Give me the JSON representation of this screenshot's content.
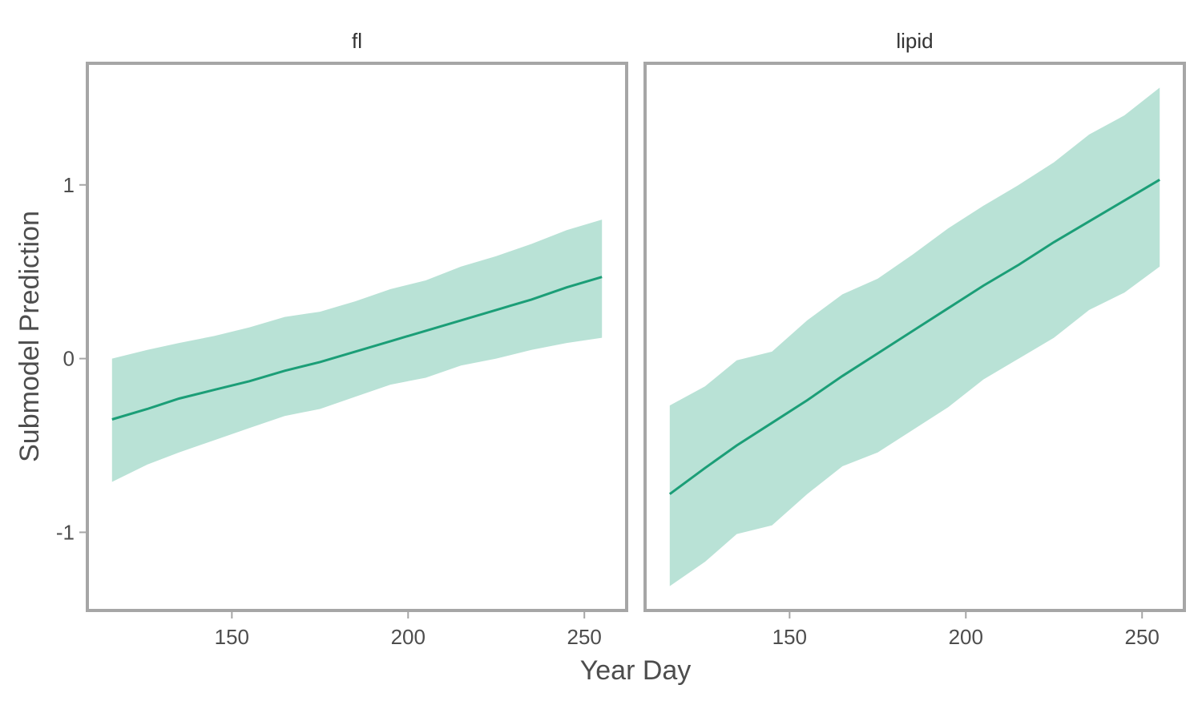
{
  "chart_data": {
    "type": "line",
    "xlabel": "Year Day",
    "ylabel": "Submodel Prediction",
    "x_ticks": [
      150,
      200,
      250
    ],
    "y_ticks": [
      1,
      0,
      -1
    ],
    "xlim": [
      109,
      262
    ],
    "ylim": [
      -1.45,
      1.7
    ],
    "grid": false,
    "colors": {
      "line": "#1b9e77",
      "band": "#b9e2d6",
      "frame": "#a6a6a6"
    },
    "panels": [
      {
        "title": "fl",
        "series": [
          {
            "x": [
              116,
              126,
              135,
              145,
              155,
              165,
              175,
              185,
              195,
              205,
              215,
              225,
              235,
              245,
              255
            ],
            "y": [
              -0.35,
              -0.29,
              -0.23,
              -0.18,
              -0.13,
              -0.07,
              -0.02,
              0.04,
              0.1,
              0.16,
              0.22,
              0.28,
              0.34,
              0.41,
              0.47
            ],
            "lower": [
              -0.71,
              -0.61,
              -0.54,
              -0.47,
              -0.4,
              -0.33,
              -0.29,
              -0.22,
              -0.15,
              -0.11,
              -0.04,
              0.0,
              0.05,
              0.09,
              0.12
            ],
            "upper": [
              0.0,
              0.05,
              0.09,
              0.13,
              0.18,
              0.24,
              0.27,
              0.33,
              0.4,
              0.45,
              0.53,
              0.59,
              0.66,
              0.74,
              0.8
            ]
          }
        ]
      },
      {
        "title": "lipid",
        "series": [
          {
            "x": [
              116,
              126,
              135,
              145,
              155,
              165,
              175,
              185,
              195,
              205,
              215,
              225,
              235,
              245,
              255
            ],
            "y": [
              -0.78,
              -0.63,
              -0.5,
              -0.37,
              -0.24,
              -0.1,
              0.03,
              0.16,
              0.29,
              0.42,
              0.54,
              0.67,
              0.79,
              0.91,
              1.03
            ],
            "lower": [
              -1.31,
              -1.17,
              -1.01,
              -0.96,
              -0.78,
              -0.62,
              -0.54,
              -0.41,
              -0.28,
              -0.12,
              0.0,
              0.12,
              0.28,
              0.38,
              0.53
            ],
            "upper": [
              -0.27,
              -0.16,
              -0.01,
              0.04,
              0.22,
              0.37,
              0.46,
              0.6,
              0.75,
              0.88,
              1.0,
              1.13,
              1.29,
              1.4,
              1.56
            ]
          }
        ]
      }
    ]
  }
}
